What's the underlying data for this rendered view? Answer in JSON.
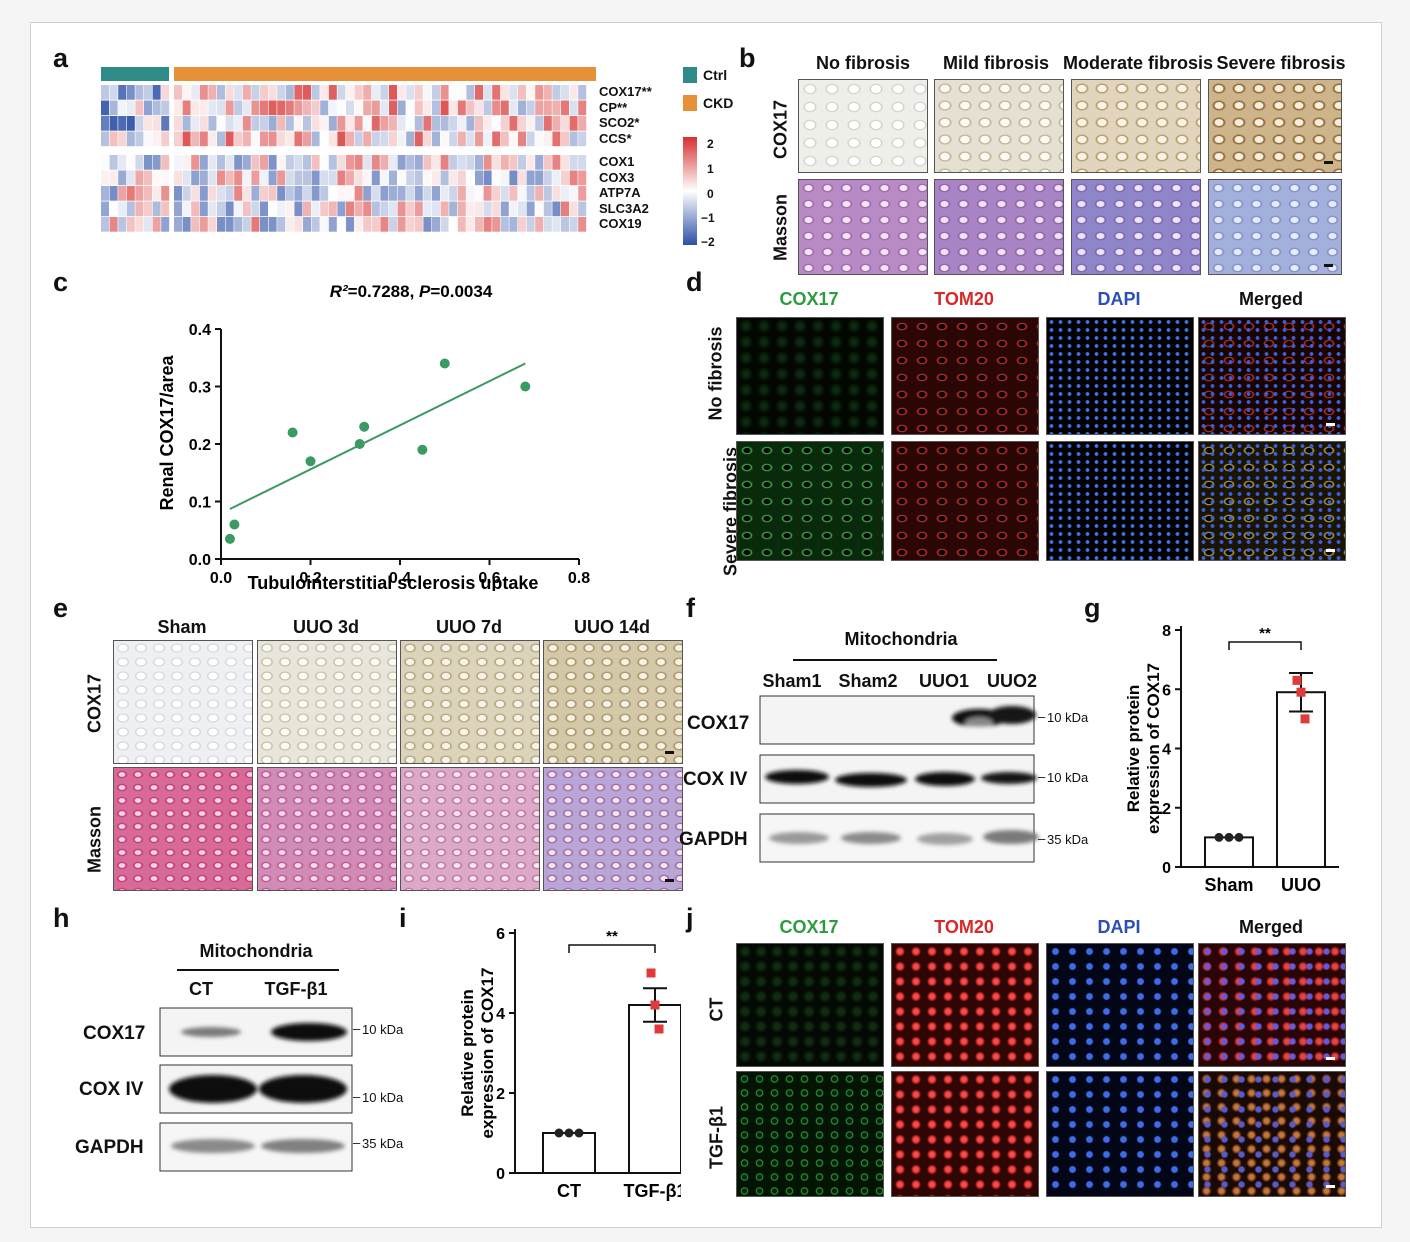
{
  "panels": {
    "a": "a",
    "b": "b",
    "c": "c",
    "d": "d",
    "e": "e",
    "f": "f",
    "g": "g",
    "h": "h",
    "i": "i",
    "j": "j"
  },
  "heatmap": {
    "genes": [
      "COX17**",
      "CP**",
      "SCO2*",
      "CCS*",
      "COX1",
      "COX3",
      "ATP7A",
      "SLC3A2",
      "COX19"
    ],
    "legend": [
      {
        "label": "Ctrl",
        "color": "#2e8b87"
      },
      {
        "label": "CKD",
        "color": "#e69138"
      }
    ],
    "colorbar_ticks": [
      "2",
      "1",
      "0",
      "−1",
      "−2"
    ],
    "colors": {
      "high": "#d73030",
      "mid": "#ffffff",
      "low": "#2c4fa6"
    }
  },
  "panel_b": {
    "columns": [
      "No fibrosis",
      "Mild fibrosis",
      "Moderate fibrosis",
      "Severe fibrosis"
    ],
    "rows": [
      "COX17",
      "Masson"
    ]
  },
  "panel_d": {
    "channels": [
      {
        "label": "COX17",
        "color": "#2e9b3e"
      },
      {
        "label": "TOM20",
        "color": "#d62a2a"
      },
      {
        "label": "DAPI",
        "color": "#2b4fb3"
      },
      {
        "label": "Merged",
        "color": "#111111"
      }
    ],
    "rows": [
      "No fibrosis",
      "Severe fibrosis"
    ]
  },
  "panel_e": {
    "columns": [
      "Sham",
      "UUO 3d",
      "UUO 7d",
      "UUO 14d"
    ],
    "rows": [
      "COX17",
      "Masson"
    ]
  },
  "panel_f": {
    "group": "Mitochondria",
    "lanes": [
      "Sham1",
      "Sham2",
      "UUO1",
      "UUO2"
    ],
    "bands": [
      "COX17",
      "COX IV",
      "GAPDH"
    ],
    "markers": [
      "10 kDa",
      "10 kDa",
      "35 kDa"
    ]
  },
  "panel_h": {
    "group": "Mitochondria",
    "lanes": [
      "CT",
      "TGF-β1"
    ],
    "bands": [
      "COX17",
      "COX IV",
      "GAPDH"
    ],
    "markers": [
      "10 kDa",
      "10 kDa",
      "35 kDa"
    ]
  },
  "panel_j": {
    "channels": [
      {
        "label": "COX17",
        "color": "#2e9b3e"
      },
      {
        "label": "TOM20",
        "color": "#d62a2a"
      },
      {
        "label": "DAPI",
        "color": "#2b4fb3"
      },
      {
        "label": "Merged",
        "color": "#111111"
      }
    ],
    "rows": [
      "CT",
      "TGF-β1"
    ]
  },
  "chart_data": [
    {
      "panel": "c",
      "type": "scatter",
      "title_r2": "R²",
      "title_r2_value": "=0.7288, ",
      "title_p": "P",
      "title_p_value": "=0.0034",
      "xlabel": "Tubulointerstitial sclerosis uptake",
      "ylabel": "Renal COX17/area",
      "xlim": [
        0,
        0.8
      ],
      "ylim": [
        0,
        0.4
      ],
      "xticks": [
        "0.0",
        "0.2",
        "0.4",
        "0.6",
        "0.8"
      ],
      "yticks": [
        "0.0",
        "0.1",
        "0.2",
        "0.3",
        "0.4"
      ],
      "points": [
        [
          0.02,
          0.035
        ],
        [
          0.03,
          0.06
        ],
        [
          0.16,
          0.22
        ],
        [
          0.2,
          0.17
        ],
        [
          0.31,
          0.2
        ],
        [
          0.32,
          0.23
        ],
        [
          0.45,
          0.19
        ],
        [
          0.5,
          0.34
        ],
        [
          0.68,
          0.3
        ]
      ],
      "fit": [
        [
          0.02,
          0.087
        ],
        [
          0.68,
          0.34
        ]
      ],
      "point_color": "#3a9a62"
    },
    {
      "panel": "g",
      "type": "bar",
      "categories": [
        "Sham",
        "UUO"
      ],
      "values": [
        1.0,
        5.9
      ],
      "errors": [
        0.0,
        0.65
      ],
      "points": [
        [
          1.0,
          1.0,
          1.0
        ],
        [
          6.3,
          5.9,
          5.0
        ]
      ],
      "point_colors": [
        "#222222",
        "#e03b3b"
      ],
      "ylabel_line1": "Relative protein",
      "ylabel_line2": "expression of COX17",
      "ylim": [
        0,
        8
      ],
      "yticks": [
        "0",
        "2",
        "4",
        "6",
        "8"
      ],
      "significance": "**"
    },
    {
      "panel": "i",
      "type": "bar",
      "categories": [
        "CT",
        "TGF-β1"
      ],
      "values": [
        1.0,
        4.2
      ],
      "errors": [
        0.0,
        0.42
      ],
      "points": [
        [
          1.0,
          1.0,
          1.0
        ],
        [
          5.0,
          4.2,
          3.6
        ]
      ],
      "point_colors": [
        "#222222",
        "#e03b3b"
      ],
      "ylabel_line1": "Relative protein",
      "ylabel_line2": "expression of COX17",
      "ylim": [
        0,
        6
      ],
      "yticks": [
        "0",
        "2",
        "4",
        "6"
      ],
      "significance": "**"
    }
  ]
}
